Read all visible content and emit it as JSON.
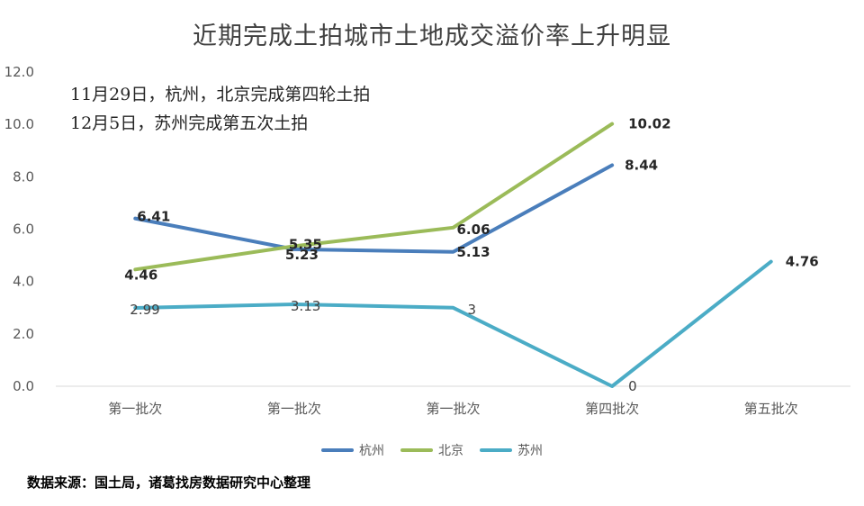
{
  "title": "近期完成土拍城市土地成交溢价率上升明显",
  "annotations": [
    "11月29日，杭州，北京完成第四轮土拍",
    "12月5日，苏州完成第五次土拍"
  ],
  "source": "数据来源：国土局，诸葛找房数据研究中心整理",
  "chart_data": {
    "type": "line",
    "title": "近期完成土拍城市土地成交溢价率上升明显",
    "categories": [
      "第一批次",
      "第一批次",
      "第一批次",
      "第四批次",
      "第五批次"
    ],
    "ylim": [
      0,
      12
    ],
    "yticks": [
      "0.0",
      "2.0",
      "4.0",
      "6.0",
      "8.0",
      "10.0",
      "12.0"
    ],
    "legend_position": "bottom",
    "series": [
      {
        "name": "杭州",
        "color": "#4a7ebb",
        "values": [
          6.41,
          5.23,
          5.13,
          8.44,
          null
        ],
        "labels": [
          "6.41",
          "5.23",
          "5.13",
          "8.44",
          null
        ],
        "bold": true
      },
      {
        "name": "北京",
        "color": "#9bbb59",
        "values": [
          4.46,
          5.35,
          6.06,
          10.02,
          null
        ],
        "labels": [
          "4.46",
          "5.35",
          "6.06",
          "10.02",
          null
        ],
        "bold": true
      },
      {
        "name": "苏州",
        "color": "#4bacc6",
        "values": [
          2.99,
          3.13,
          3.0,
          0,
          4.76
        ],
        "labels": [
          "2.99",
          "3.13",
          "3",
          "0",
          "4.76"
        ],
        "bold": false,
        "bold_last": true
      }
    ]
  }
}
